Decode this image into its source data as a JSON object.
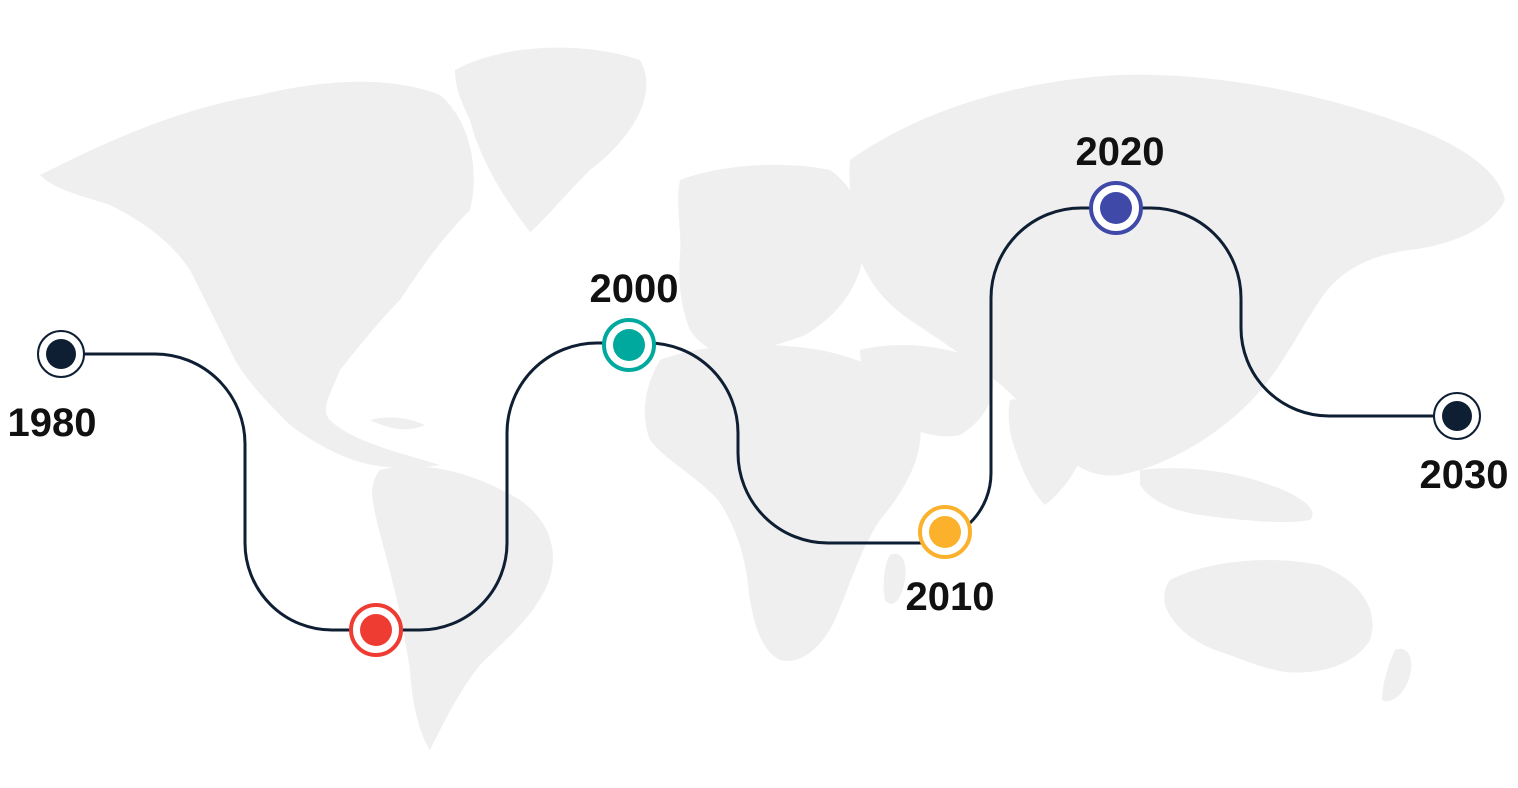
{
  "timeline": {
    "milestones": [
      {
        "year": "1980",
        "color": "#0f1f33"
      },
      {
        "year": "",
        "color": "#ee3c33"
      },
      {
        "year": "2000",
        "color": "#00a99d"
      },
      {
        "year": "2010",
        "color": "#fbb12b"
      },
      {
        "year": "2020",
        "color": "#3f4aa8"
      },
      {
        "year": "2030",
        "color": "#0f1f33"
      }
    ],
    "line_color": "#0f1f33",
    "background": "world-map"
  }
}
